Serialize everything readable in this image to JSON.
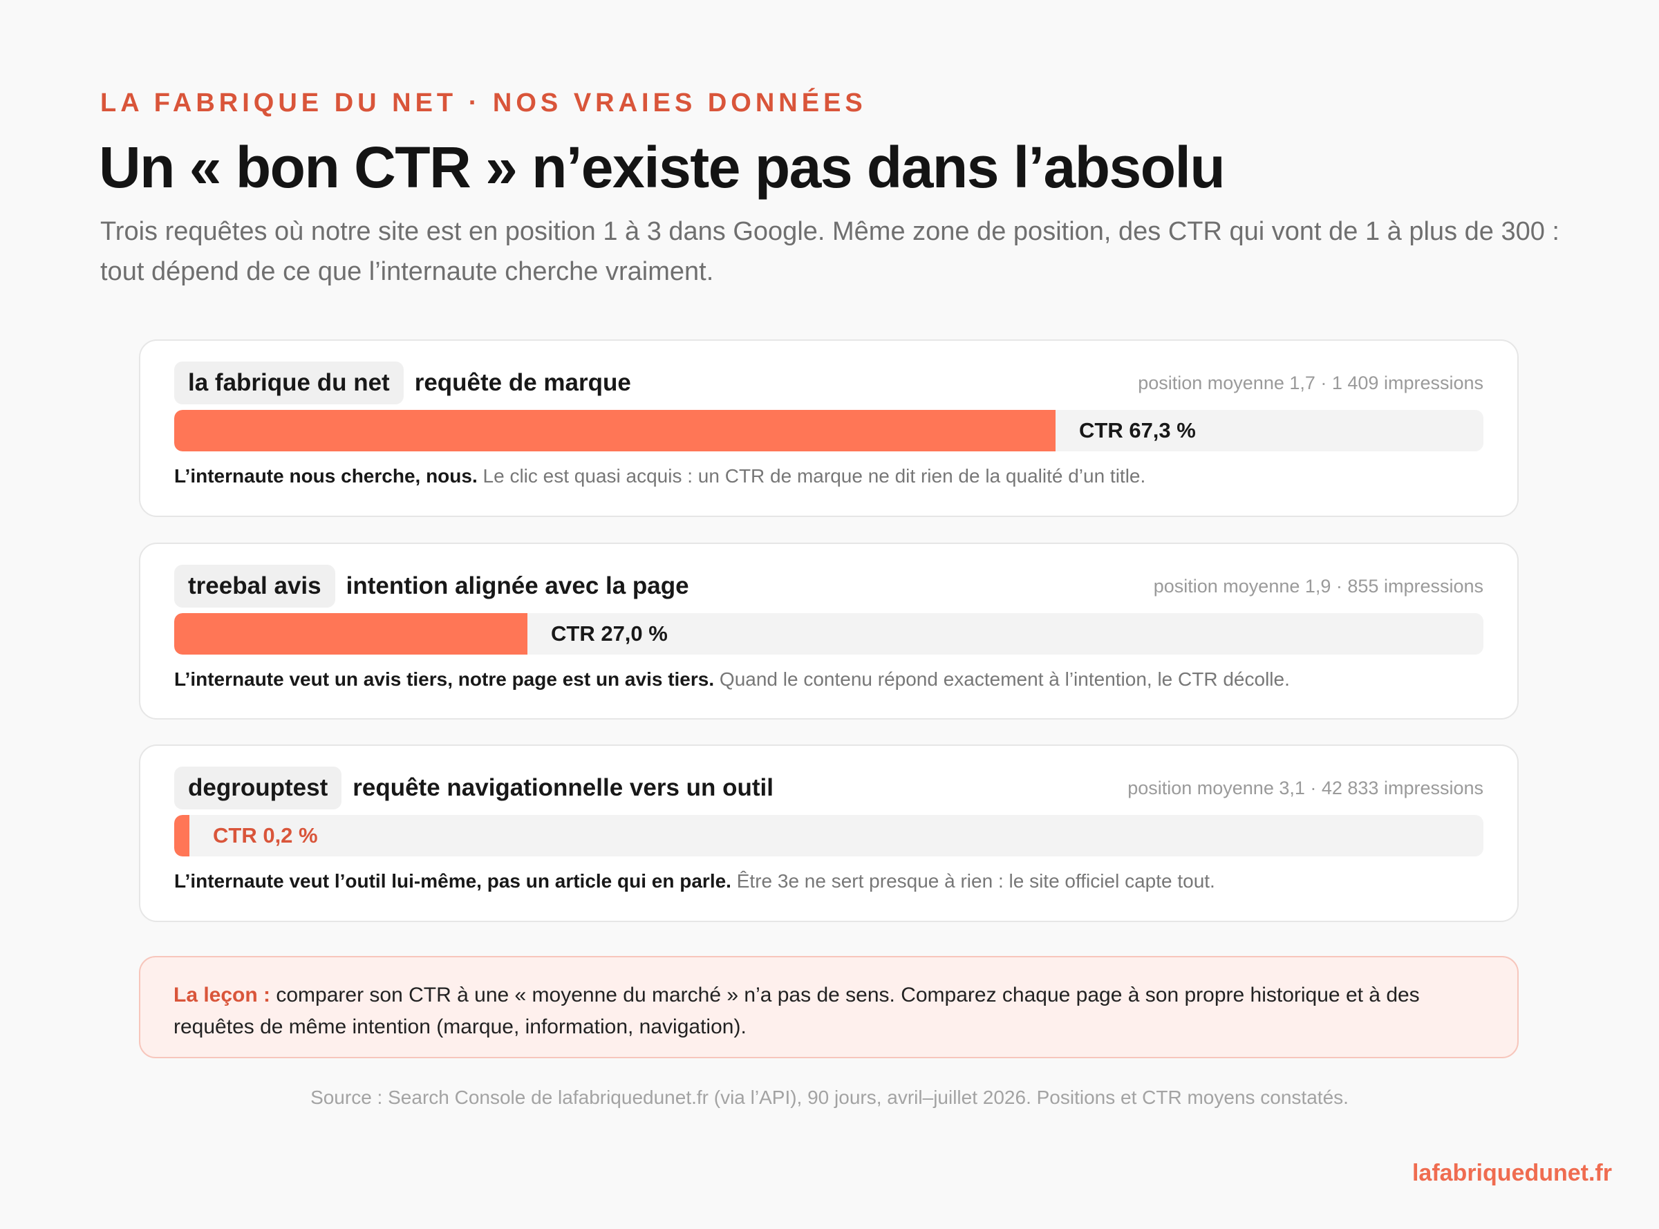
{
  "header": {
    "kicker": "LA FABRIQUE DU NET · NOS VRAIES DONNÉES",
    "title": "Un « bon CTR » n’existe pas dans l’absolu",
    "subtitle": "Trois requêtes où notre site est en position 1 à 3 dans Google. Même zone de position, des CTR qui vont de 1 à plus de 300 : tout dépend de ce que l’internaute cherche vraiment."
  },
  "colors": {
    "accent": "#d9553a",
    "bar_fill": "#ff7656",
    "bar_track": "#f3f3f3",
    "lesson_bg": "#fef0ed"
  },
  "chart_data": {
    "type": "bar",
    "orientation": "horizontal",
    "categories": [
      "la fabrique du net",
      "treebal avis",
      "degrouptest"
    ],
    "values": [
      67.3,
      27.0,
      0.2
    ],
    "unit": "%",
    "xlim": [
      0,
      100
    ],
    "rows": [
      {
        "query": "la fabrique du net",
        "intent": "requête de marque",
        "meta": "position moyenne 1,7 · 1 409 impressions",
        "ctr": 67.3,
        "ctr_label": "CTR 67,3 %",
        "note_bold": "L’internaute nous cherche, nous.",
        "note_text": "Le clic est quasi acquis : un CTR de marque ne dit rien de la qualité d’un title."
      },
      {
        "query": "treebal avis",
        "intent": "intention alignée avec la page",
        "meta": "position moyenne 1,9 · 855 impressions",
        "ctr": 27.0,
        "ctr_label": "CTR 27,0 %",
        "note_bold": "L’internaute veut un avis tiers, notre page est un avis tiers.",
        "note_text": "Quand le contenu répond exactement à l’intention, le CTR décolle."
      },
      {
        "query": "degrouptest",
        "intent": "requête navigationnelle vers un outil",
        "meta": "position moyenne 3,1 · 42 833 impressions",
        "ctr": 0.2,
        "ctr_label": "CTR 0,2 %",
        "note_bold": "L’internaute veut l’outil lui-même, pas un article qui en parle.",
        "note_text": "Être 3e ne sert presque à rien : le site officiel capte tout."
      }
    ]
  },
  "lesson": {
    "lead": "La leçon :",
    "text": "comparer son CTR à une « moyenne du marché » n’a pas de sens. Comparez chaque page à son propre historique et à des requêtes de même intention (marque, information, navigation)."
  },
  "footer": {
    "source": "Source : Search Console de lafabriquedunet.fr (via l’API), 90 jours, avril–juillet 2026. Positions et CTR moyens constatés.",
    "brand": "lafabriquedunet.fr"
  }
}
